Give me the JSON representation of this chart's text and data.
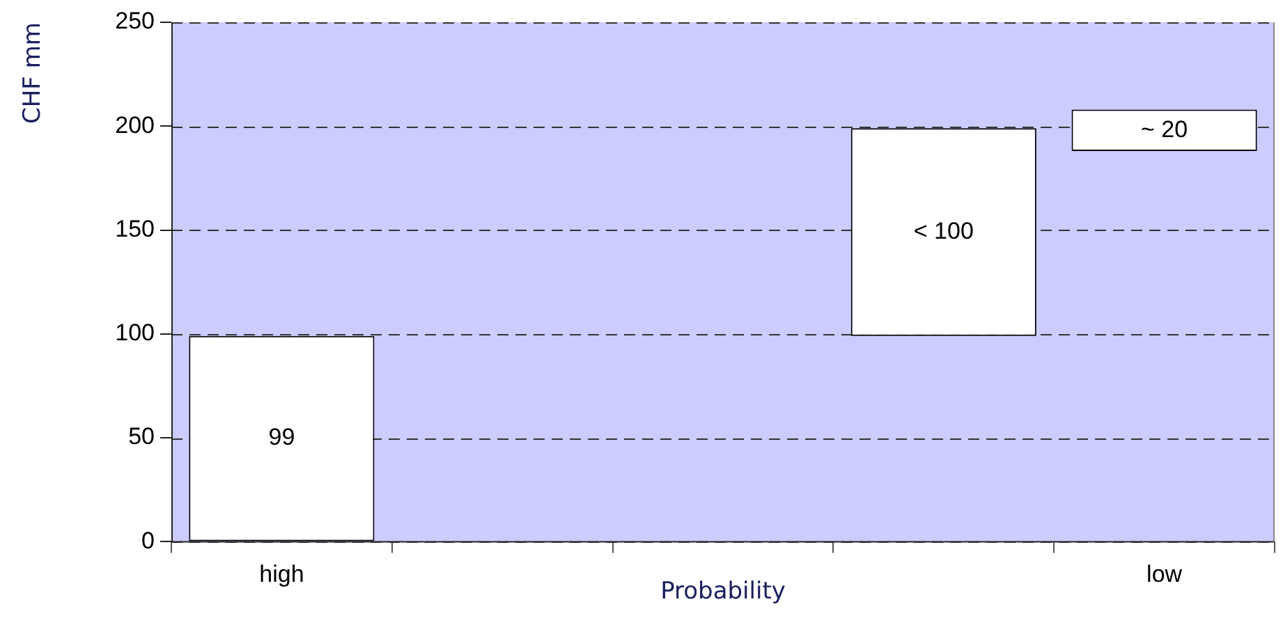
{
  "chart_data": {
    "type": "bar",
    "xlabel": "Probability",
    "ylabel": "CHF mm",
    "categories": [
      "high",
      null,
      null,
      null,
      "low"
    ],
    "values": [
      99,
      null,
      null,
      100,
      20
    ],
    "base": [
      0,
      null,
      null,
      99,
      188
    ],
    "value_labels": [
      "99",
      null,
      null,
      "< 100",
      "~ 20"
    ],
    "color": "#ffffff",
    "ylim": [
      0,
      250
    ],
    "yticks": [
      0,
      50,
      100,
      150,
      200,
      250
    ],
    "grid": "y",
    "legend": false
  }
}
